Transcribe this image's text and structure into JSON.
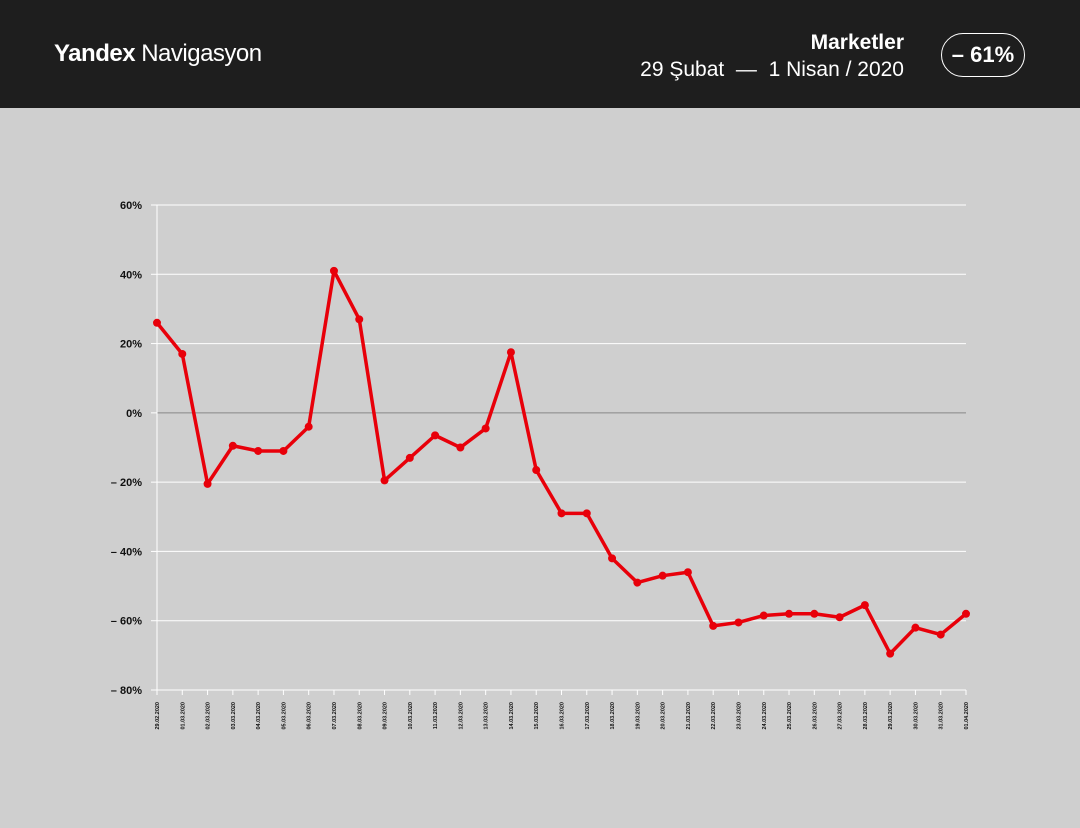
{
  "header": {
    "brand_bold": "Yandex",
    "brand_light": "Navigasyon",
    "title": "Marketler",
    "subtitle": "29 Şubat  —  1 Nisan / 2020",
    "badge": "– 61%"
  },
  "colors": {
    "header_bg": "#1e1e1e",
    "chart_bg": "#cfcfcf",
    "line": "#e8000a",
    "grid": "#ffffff",
    "zero_line": "#888888"
  },
  "chart_data": {
    "type": "line",
    "title": "",
    "xlabel": "",
    "ylabel": "",
    "ylim": [
      -80,
      60
    ],
    "yticks": [
      60,
      40,
      20,
      0,
      -20,
      -40,
      -60,
      -80
    ],
    "ytick_labels": [
      "60%",
      "40%",
      "20%",
      "0%",
      "– 20%",
      "– 40%",
      "– 60%",
      "– 80%"
    ],
    "grid": true,
    "legend": "none",
    "categories": [
      "29.02.2020",
      "01.03.2020",
      "02.03.2020",
      "03.03.2020",
      "04.03.2020",
      "05.03.2020",
      "06.03.2020",
      "07.03.2020",
      "08.03.2020",
      "09.03.2020",
      "10.03.2020",
      "11.03.2020",
      "12.03.2020",
      "13.03.2020",
      "14.03.2020",
      "15.03.2020",
      "16.03.2020",
      "17.03.2020",
      "18.03.2020",
      "19.03.2020",
      "20.03.2020",
      "21.03.2020",
      "22.03.2020",
      "23.03.2020",
      "24.03.2020",
      "25.03.2020",
      "26.03.2020",
      "27.03.2020",
      "28.03.2020",
      "29.03.2020",
      "30.03.2020",
      "31.03.2020",
      "01.04.2020"
    ],
    "values": [
      26,
      17,
      -20.5,
      -9.5,
      -11,
      -11,
      -4,
      41,
      27,
      -19.5,
      -13,
      -6.5,
      -10,
      -4.5,
      17.5,
      -16.5,
      -29,
      -29,
      -42,
      -49,
      -47,
      -46,
      -61.5,
      -60.5,
      -58.5,
      -58,
      -58,
      -59,
      -55.5,
      -69.5,
      -62,
      -64,
      -58
    ]
  }
}
